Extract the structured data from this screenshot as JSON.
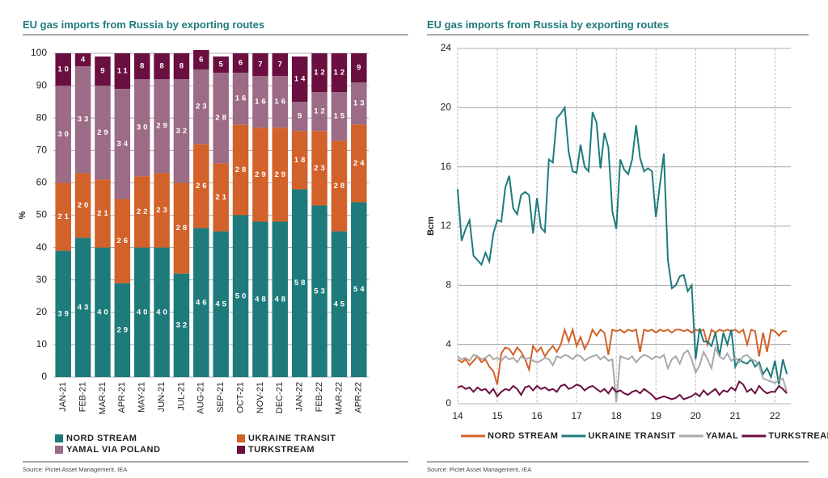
{
  "chart_data": [
    {
      "type": "bar",
      "stacked": true,
      "title": "EU gas imports from Russia by exporting routes",
      "y_label": "%",
      "source": "Source: Pictet Asset Management, IEA",
      "categories": [
        "JAN-21",
        "FEB-21",
        "MAR-21",
        "APR-21",
        "MAY-21",
        "JUN-21",
        "JUL-21",
        "AUG-21",
        "SEP-21",
        "OCT-21",
        "NOV-21",
        "DEC-21",
        "JAN-22",
        "FEB-22",
        "MAR-22",
        "APR-22"
      ],
      "series": [
        {
          "name": "NORD STREAM",
          "color": "#1e7b7b",
          "values": [
            39,
            43,
            40,
            29,
            40,
            40,
            32,
            46,
            45,
            50,
            48,
            48,
            58,
            53,
            45,
            54
          ]
        },
        {
          "name": "UKRAINE TRANSIT",
          "color": "#d2622a",
          "values": [
            21,
            20,
            21,
            26,
            22,
            23,
            28,
            26,
            21,
            28,
            29,
            29,
            18,
            23,
            28,
            24
          ]
        },
        {
          "name": "YAMAL VIA POLAND",
          "color": "#9c6b86",
          "values": [
            30,
            33,
            29,
            34,
            30,
            29,
            32,
            23,
            28,
            16,
            16,
            16,
            9,
            12,
            15,
            13
          ]
        },
        {
          "name": "TURKSTREAM",
          "color": "#6a0f3f",
          "values": [
            10,
            4,
            9,
            11,
            8,
            8,
            8,
            6,
            5,
            6,
            7,
            7,
            14,
            12,
            12,
            9
          ]
        }
      ],
      "ylim": [
        0,
        100
      ],
      "yticks": [
        0,
        10,
        20,
        30,
        40,
        50,
        60,
        70,
        80,
        90,
        100
      ],
      "grid": true
    },
    {
      "type": "line",
      "title": "EU gas imports from Russia by exporting routes",
      "y_label": "Bcm",
      "source": "Source: Pictet Asset Management, IEA",
      "x": [
        14,
        14.1,
        14.2,
        14.3,
        14.4,
        14.5,
        14.6,
        14.7,
        14.8,
        14.9,
        15,
        15.1,
        15.2,
        15.3,
        15.4,
        15.5,
        15.6,
        15.7,
        15.8,
        15.9,
        16,
        16.1,
        16.2,
        16.3,
        16.4,
        16.5,
        16.6,
        16.7,
        16.8,
        16.9,
        17,
        17.1,
        17.2,
        17.3,
        17.4,
        17.5,
        17.6,
        17.7,
        17.8,
        17.9,
        18,
        18.1,
        18.2,
        18.3,
        18.4,
        18.5,
        18.6,
        18.7,
        18.8,
        18.9,
        19,
        19.1,
        19.2,
        19.3,
        19.4,
        19.5,
        19.6,
        19.7,
        19.8,
        19.9,
        20,
        20.1,
        20.2,
        20.3,
        20.4,
        20.5,
        20.6,
        20.7,
        20.8,
        20.9,
        21,
        21.1,
        21.2,
        21.3,
        21.4,
        21.5,
        21.6,
        21.7,
        21.8,
        21.9,
        22,
        22.1,
        22.2,
        22.3
      ],
      "series": [
        {
          "name": "NORD STREAM",
          "color": "#d2622a",
          "values": [
            3.0,
            2.8,
            3.0,
            2.6,
            2.9,
            3.2,
            2.8,
            3.0,
            2.5,
            2.2,
            1.3,
            3.4,
            3.8,
            3.7,
            3.3,
            3.8,
            3.5,
            3.0,
            2.3,
            3.9,
            3.5,
            3.8,
            3.2,
            3.6,
            3.9,
            3.5,
            4.0,
            5.0,
            4.2,
            5.0,
            3.9,
            4.5,
            3.7,
            4.2,
            5.0,
            4.6,
            5.0,
            4.8,
            3.3,
            5.0,
            4.9,
            5.0,
            4.8,
            5.0,
            4.9,
            5.0,
            3.5,
            5.0,
            4.9,
            5.0,
            4.8,
            5.0,
            4.9,
            5.0,
            4.8,
            5.0,
            5.0,
            4.9,
            5.0,
            4.8,
            5.0,
            4.9,
            5.0,
            4.0,
            5.0,
            4.8,
            5.0,
            4.9,
            5.0,
            4.9,
            5.0,
            4.8,
            5.0,
            4.0,
            5.0,
            4.9,
            3.2,
            4.8,
            3.5,
            5.0,
            4.9,
            4.6,
            4.9,
            4.9
          ]
        },
        {
          "name": "UKRAINE TRANSIT",
          "color": "#1e7b7b",
          "values": [
            14.5,
            11.0,
            11.8,
            12.4,
            10.0,
            9.7,
            9.4,
            10.2,
            9.6,
            11.5,
            12.4,
            12.3,
            14.6,
            15.4,
            13.2,
            12.8,
            14.1,
            14.3,
            14.1,
            11.5,
            13.9,
            11.9,
            11.6,
            16.5,
            16.3,
            19.3,
            19.6,
            20.0,
            17.0,
            15.7,
            15.6,
            17.5,
            16.0,
            15.7,
            19.7,
            19.0,
            15.9,
            18.3,
            17.3,
            13.0,
            11.8,
            16.5,
            15.8,
            15.5,
            16.5,
            18.8,
            16.6,
            15.7,
            15.9,
            15.7,
            12.6,
            14.8,
            16.9,
            9.7,
            7.8,
            8.0,
            8.6,
            8.7,
            7.6,
            8.0,
            3.0,
            5.1,
            4.2,
            4.2,
            3.9,
            4.8,
            3.2,
            4.8,
            4.0,
            5.0,
            2.5,
            3.0,
            2.8,
            2.7,
            3.0,
            2.5,
            2.8,
            2.0,
            2.4,
            1.8,
            2.9,
            1.3,
            3.0,
            2.0
          ]
        },
        {
          "name": "YAMAL",
          "color": "#a8a8a8",
          "values": [
            3.2,
            3.0,
            3.1,
            2.9,
            3.3,
            3.2,
            3.0,
            3.1,
            3.3,
            3.0,
            3.1,
            2.9,
            3.2,
            3.0,
            3.1,
            2.8,
            3.2,
            3.0,
            3.1,
            2.9,
            2.8,
            2.9,
            3.1,
            3.0,
            2.6,
            3.2,
            3.1,
            3.3,
            3.2,
            3.0,
            3.3,
            3.2,
            2.9,
            3.1,
            3.2,
            3.3,
            3.0,
            3.2,
            2.9,
            3.0,
            0.1,
            3.2,
            3.1,
            3.0,
            3.2,
            2.8,
            3.1,
            3.3,
            3.2,
            3.0,
            3.2,
            3.1,
            3.3,
            2.4,
            3.0,
            3.2,
            2.7,
            3.4,
            3.6,
            3.0,
            2.1,
            2.6,
            3.5,
            3.0,
            2.4,
            3.8,
            3.2,
            3.0,
            3.4,
            2.9,
            3.1,
            2.8,
            3.2,
            3.3,
            3.0,
            2.9,
            2.6,
            1.7,
            1.6,
            1.5,
            1.4,
            1.6,
            1.7,
            0.8
          ]
        },
        {
          "name": "TURKSTREAM",
          "color": "#6a0f3f",
          "values": [
            1.1,
            1.2,
            1.0,
            1.1,
            0.8,
            1.1,
            0.9,
            1.0,
            0.7,
            1.0,
            0.5,
            0.8,
            1.0,
            0.9,
            1.2,
            1.0,
            0.6,
            1.1,
            1.2,
            0.9,
            1.2,
            1.0,
            1.1,
            0.9,
            1.0,
            0.8,
            1.2,
            1.3,
            1.0,
            1.1,
            1.3,
            1.2,
            0.9,
            1.1,
            1.2,
            1.0,
            0.8,
            1.0,
            0.7,
            1.1,
            0.8,
            0.9,
            0.7,
            0.6,
            0.8,
            0.9,
            0.7,
            1.0,
            0.8,
            0.6,
            0.3,
            0.4,
            0.5,
            0.4,
            0.3,
            0.4,
            0.6,
            0.3,
            0.4,
            0.5,
            0.7,
            0.5,
            0.9,
            0.6,
            0.8,
            1.0,
            0.6,
            0.9,
            0.8,
            1.1,
            0.9,
            1.5,
            1.3,
            0.8,
            1.0,
            0.7,
            1.2,
            0.9,
            0.7,
            0.8,
            0.8,
            1.2,
            1.0,
            0.7
          ]
        }
      ],
      "xlim": [
        14,
        22.4
      ],
      "xticks": [
        14,
        15,
        16,
        17,
        18,
        19,
        20,
        21,
        22
      ],
      "ylim": [
        0,
        24
      ],
      "yticks": [
        0,
        4,
        8,
        12,
        16,
        20,
        24
      ],
      "grid": true
    }
  ]
}
